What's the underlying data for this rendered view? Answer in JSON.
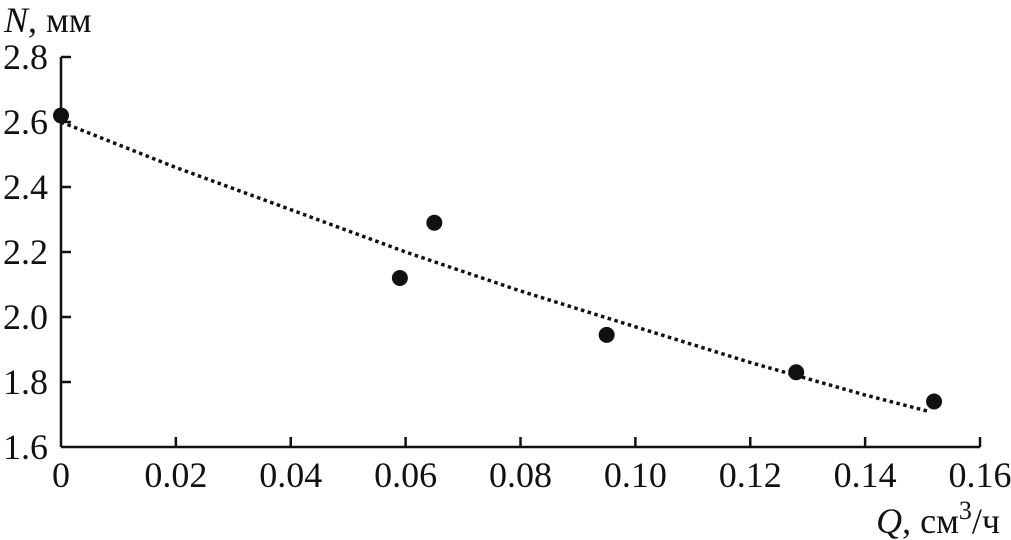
{
  "chart_data": {
    "type": "scatter",
    "title": "",
    "ylabel": {
      "var": "N",
      "unit": ", мм"
    },
    "xlabel": {
      "var": "Q",
      "unit_pre": ", см",
      "unit_sup": "3",
      "unit_post": "/ч"
    },
    "xlim": [
      0,
      0.16
    ],
    "ylim": [
      1.6,
      2.8
    ],
    "x_ticks": [
      {
        "value": 0,
        "label": "0"
      },
      {
        "value": 0.02,
        "label": "0.02"
      },
      {
        "value": 0.04,
        "label": "0.04"
      },
      {
        "value": 0.06,
        "label": "0.06"
      },
      {
        "value": 0.08,
        "label": "0.08"
      },
      {
        "value": 0.1,
        "label": "0.10"
      },
      {
        "value": 0.12,
        "label": "0.12"
      },
      {
        "value": 0.14,
        "label": "0.14"
      },
      {
        "value": 0.16,
        "label": "0.16"
      }
    ],
    "y_ticks": [
      {
        "value": 1.6,
        "label": "1.6"
      },
      {
        "value": 1.8,
        "label": "1.8"
      },
      {
        "value": 2.0,
        "label": "2.0"
      },
      {
        "value": 2.2,
        "label": "2.2"
      },
      {
        "value": 2.4,
        "label": "2.4"
      },
      {
        "value": 2.6,
        "label": "2.6"
      },
      {
        "value": 2.8,
        "label": "2.8"
      }
    ],
    "grid": false,
    "series": [
      {
        "kind": "points",
        "x": [
          0,
          0.059,
          0.065,
          0.095,
          0.128,
          0.152
        ],
        "y": [
          2.62,
          2.12,
          2.29,
          1.945,
          1.83,
          1.74
        ],
        "color": "#111111"
      },
      {
        "kind": "fit",
        "style": "dotted",
        "x": [
          0,
          0.02,
          0.04,
          0.06,
          0.08,
          0.1,
          0.12,
          0.14,
          0.151
        ],
        "y": [
          2.6,
          2.46,
          2.33,
          2.2,
          2.08,
          1.97,
          1.86,
          1.76,
          1.71
        ],
        "color": "#111111"
      }
    ]
  }
}
